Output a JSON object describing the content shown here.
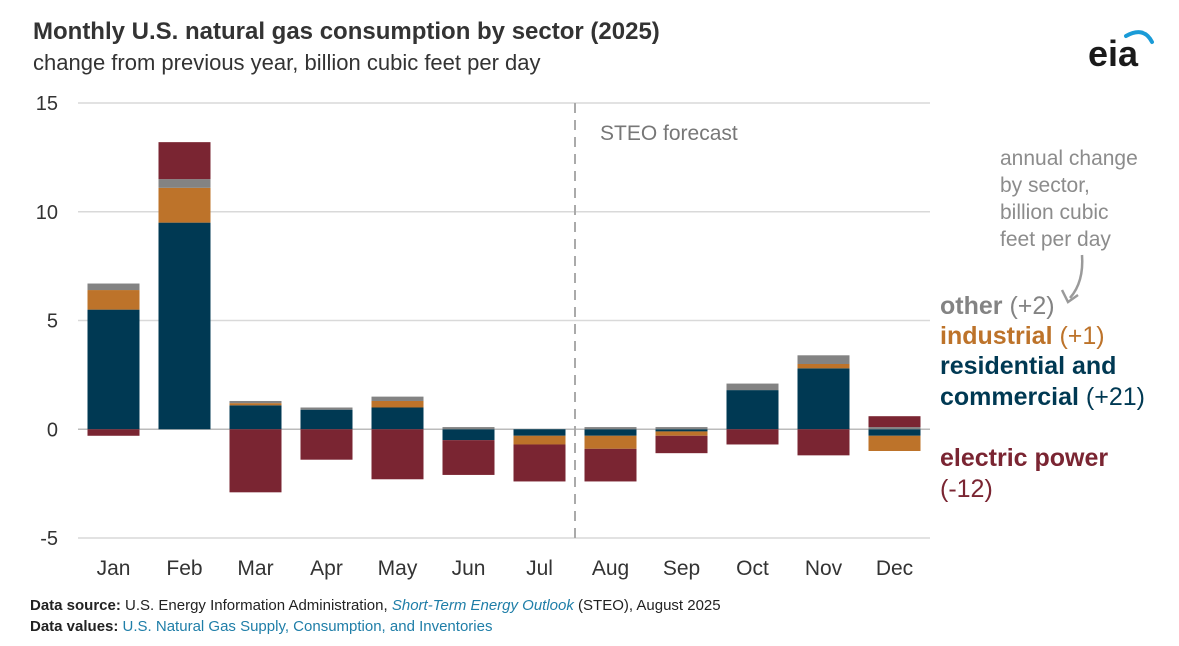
{
  "title": "Monthly U.S. natural gas consumption by sector (2025)",
  "subtitle": "change from previous year, billion cubic feet per day",
  "logo_text": "eia",
  "chart_data": {
    "type": "bar",
    "stacked": true,
    "categories": [
      "Jan",
      "Feb",
      "Mar",
      "Apr",
      "May",
      "Jun",
      "Jul",
      "Aug",
      "Sep",
      "Oct",
      "Nov",
      "Dec"
    ],
    "series": [
      {
        "name": "residential and commercial",
        "color": "#003953",
        "values": [
          5.5,
          9.5,
          1.1,
          0.9,
          1.0,
          -0.5,
          -0.3,
          -0.3,
          -0.1,
          1.8,
          2.8,
          -0.3
        ]
      },
      {
        "name": "industrial",
        "color": "#bd732a",
        "values": [
          0.9,
          1.6,
          0.1,
          0.0,
          0.3,
          0.0,
          -0.4,
          -0.6,
          -0.2,
          0.0,
          0.2,
          -0.7
        ]
      },
      {
        "name": "other",
        "color": "#838383",
        "values": [
          0.3,
          0.4,
          0.1,
          0.1,
          0.2,
          0.1,
          0.0,
          0.1,
          0.1,
          0.3,
          0.4,
          0.1
        ]
      },
      {
        "name": "electric power",
        "color": "#7a2532",
        "values": [
          -0.3,
          1.7,
          -2.9,
          -1.4,
          -2.3,
          -1.6,
          -1.7,
          -1.5,
          -0.8,
          -0.7,
          -1.2,
          0.5
        ]
      }
    ],
    "ylim": [
      -5,
      15
    ],
    "yticks": [
      15,
      10,
      5,
      0,
      -5
    ],
    "grid": true,
    "forecast_label": "STEO forecast",
    "forecast_start": "Aug",
    "annotation": "annual change by sector, billion cubic feet per day",
    "legend": {
      "position": "right",
      "items": [
        {
          "name": "other",
          "value": "(+2)",
          "color": "#838383"
        },
        {
          "name": "industrial",
          "value": "(+1)",
          "color": "#bd732a"
        },
        {
          "name": "residential and commercial",
          "value": "(+21)",
          "color": "#003953"
        },
        {
          "name": "electric power",
          "value": "(-12)",
          "color": "#7a2532"
        }
      ]
    }
  },
  "footer": {
    "source_label": "Data source:",
    "source_text_1": "U.S. Energy Information Administration,",
    "source_link": "Short-Term Energy Outlook",
    "source_text_2": "(STEO), August 2025",
    "values_label": "Data values:",
    "values_link": "U.S. Natural Gas Supply, Consumption, and Inventories"
  }
}
